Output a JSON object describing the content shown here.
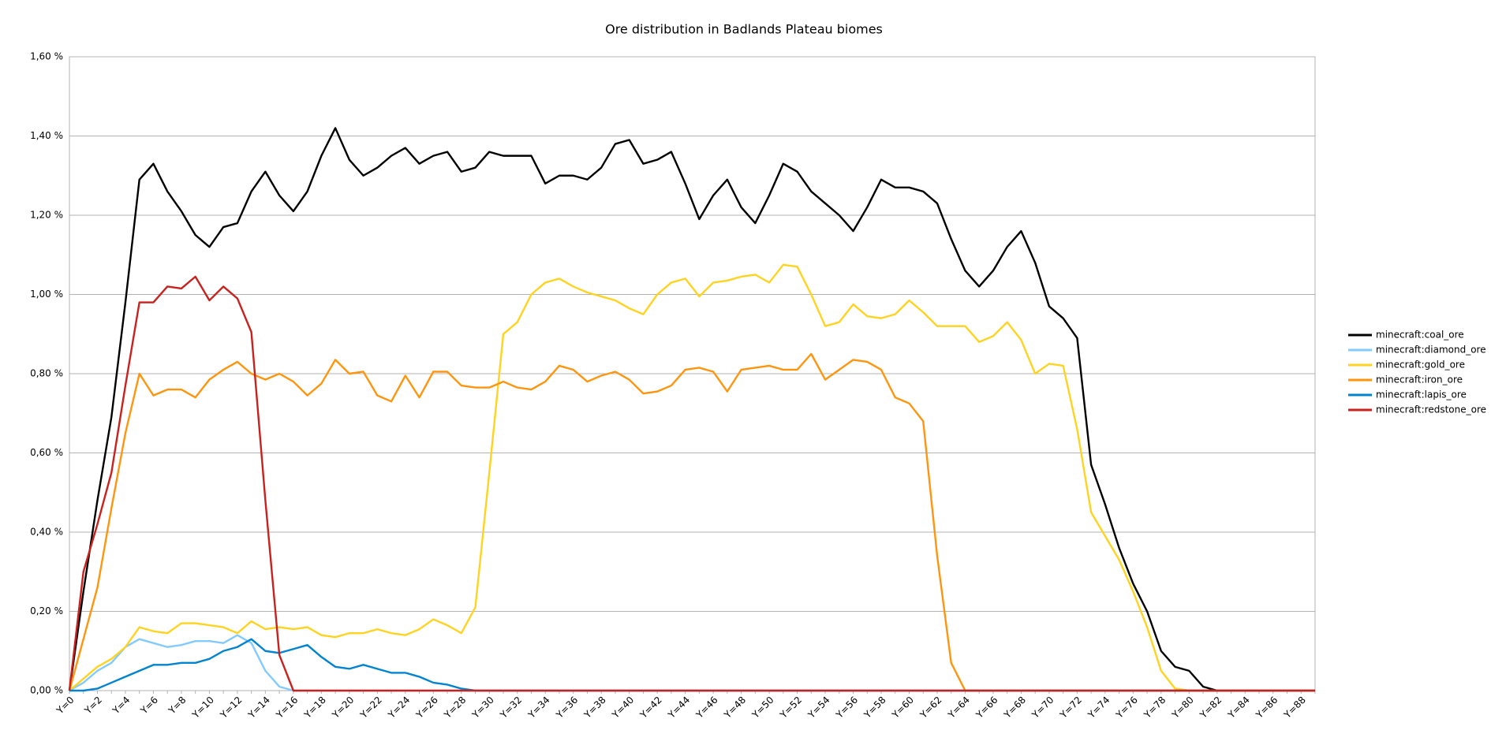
{
  "chart_data": {
    "type": "line",
    "title": "Ore distribution in Badlands Plateau biomes",
    "categories": [
      "Y=0",
      null,
      "Y=2",
      null,
      "Y=4",
      null,
      "Y=6",
      null,
      "Y=8",
      null,
      "Y=10",
      null,
      "Y=12",
      null,
      "Y=14",
      null,
      "Y=16",
      null,
      "Y=18",
      null,
      "Y=20",
      null,
      "Y=22",
      null,
      "Y=24",
      null,
      "Y=26",
      null,
      "Y=28",
      null,
      "Y=30",
      null,
      "Y=32",
      null,
      "Y=34",
      null,
      "Y=36",
      null,
      "Y=38",
      null,
      "Y=40",
      null,
      "Y=42",
      null,
      "Y=44",
      null,
      "Y=46",
      null,
      "Y=48",
      null,
      "Y=50",
      null,
      "Y=52",
      null,
      "Y=54",
      null,
      "Y=56",
      null,
      "Y=58",
      null,
      "Y=60",
      null,
      "Y=62",
      null,
      "Y=64",
      null,
      "Y=66",
      null,
      "Y=68",
      null,
      "Y=70",
      null,
      "Y=72",
      null,
      "Y=74",
      null,
      "Y=76",
      null,
      "Y=78",
      null,
      "Y=80",
      null,
      "Y=82",
      null,
      "Y=84",
      null,
      "Y=86",
      null,
      "Y=88",
      null
    ],
    "ylim": [
      0,
      1.6
    ],
    "yticks": [
      {
        "value": 0,
        "label": "0,00 %"
      },
      {
        "value": 0.2,
        "label": "0,20 %"
      },
      {
        "value": 0.4,
        "label": "0,40 %"
      },
      {
        "value": 0.6,
        "label": "0,60 %"
      },
      {
        "value": 0.8,
        "label": "0,80 %"
      },
      {
        "value": 1.0,
        "label": "1,00 %"
      },
      {
        "value": 1.2,
        "label": "1,20 %"
      },
      {
        "value": 1.4,
        "label": "1,40 %"
      },
      {
        "value": 1.6,
        "label": "1,60 %"
      }
    ],
    "grid": true,
    "legend": "right",
    "series": [
      {
        "name": "minecraft:coal_ore",
        "color": "#000000",
        "values": [
          0,
          0.25,
          0.48,
          0.69,
          0.98,
          1.29,
          1.33,
          1.26,
          1.21,
          1.15,
          1.12,
          1.17,
          1.18,
          1.26,
          1.31,
          1.25,
          1.21,
          1.26,
          1.35,
          1.42,
          1.34,
          1.3,
          1.32,
          1.35,
          1.37,
          1.33,
          1.35,
          1.36,
          1.31,
          1.32,
          1.36,
          1.35,
          1.35,
          1.35,
          1.28,
          1.3,
          1.3,
          1.29,
          1.32,
          1.38,
          1.39,
          1.33,
          1.34,
          1.36,
          1.28,
          1.19,
          1.25,
          1.29,
          1.22,
          1.18,
          1.25,
          1.33,
          1.31,
          1.26,
          1.23,
          1.2,
          1.16,
          1.22,
          1.29,
          1.27,
          1.27,
          1.26,
          1.23,
          1.14,
          1.06,
          1.02,
          1.06,
          1.12,
          1.16,
          1.08,
          0.97,
          0.94,
          0.89,
          0.57,
          0.47,
          0.36,
          0.27,
          0.2,
          0.1,
          0.06,
          0.05,
          0.01,
          0,
          0,
          0,
          0,
          0,
          0,
          0,
          0
        ]
      },
      {
        "name": "minecraft:diamond_ore",
        "color": "#83caff",
        "values": [
          0,
          0.02,
          0.05,
          0.07,
          0.11,
          0.13,
          0.12,
          0.11,
          0.115,
          0.125,
          0.125,
          0.12,
          0.14,
          0.12,
          0.05,
          0.01,
          0,
          0,
          0,
          0,
          0,
          0,
          0,
          0,
          0,
          0,
          0,
          0,
          0,
          0,
          0,
          0,
          0,
          0,
          0,
          0,
          0,
          0,
          0,
          0,
          0,
          0,
          0,
          0,
          0,
          0,
          0,
          0,
          0,
          0,
          0,
          0,
          0,
          0,
          0,
          0,
          0,
          0,
          0,
          0,
          0,
          0,
          0,
          0,
          0,
          0,
          0,
          0,
          0,
          0,
          0,
          0,
          0,
          0,
          0,
          0,
          0,
          0,
          0,
          0,
          0,
          0,
          0,
          0,
          0,
          0,
          0,
          0,
          0,
          0
        ]
      },
      {
        "name": "minecraft:gold_ore",
        "color": "#ffd320",
        "values": [
          0,
          0.03,
          0.06,
          0.08,
          0.11,
          0.16,
          0.15,
          0.145,
          0.17,
          0.17,
          0.165,
          0.16,
          0.145,
          0.175,
          0.155,
          0.16,
          0.155,
          0.16,
          0.14,
          0.135,
          0.145,
          0.145,
          0.155,
          0.145,
          0.14,
          0.155,
          0.18,
          0.165,
          0.145,
          0.21,
          0.55,
          0.9,
          0.93,
          1.0,
          1.03,
          1.04,
          1.02,
          1.005,
          0.995,
          0.985,
          0.965,
          0.95,
          1.0,
          1.03,
          1.04,
          0.995,
          1.03,
          1.035,
          1.045,
          1.05,
          1.03,
          1.075,
          1.07,
          1.0,
          0.92,
          0.93,
          0.975,
          0.945,
          0.94,
          0.95,
          0.985,
          0.955,
          0.92,
          0.92,
          0.92,
          0.88,
          0.895,
          0.93,
          0.885,
          0.8,
          0.825,
          0.82,
          0.66,
          0.45,
          0.39,
          0.33,
          0.25,
          0.16,
          0.05,
          0.005,
          0,
          0,
          0,
          0,
          0,
          0,
          0,
          0,
          0,
          0
        ]
      },
      {
        "name": "minecraft:iron_ore",
        "color": "#ff950e",
        "values": [
          0,
          0.13,
          0.26,
          0.46,
          0.65,
          0.8,
          0.745,
          0.76,
          0.76,
          0.74,
          0.785,
          0.81,
          0.83,
          0.8,
          0.785,
          0.8,
          0.78,
          0.745,
          0.775,
          0.835,
          0.8,
          0.805,
          0.745,
          0.73,
          0.795,
          0.74,
          0.805,
          0.805,
          0.77,
          0.765,
          0.765,
          0.78,
          0.765,
          0.76,
          0.78,
          0.82,
          0.81,
          0.78,
          0.795,
          0.805,
          0.785,
          0.75,
          0.755,
          0.77,
          0.81,
          0.815,
          0.805,
          0.755,
          0.81,
          0.815,
          0.82,
          0.81,
          0.81,
          0.85,
          0.785,
          0.81,
          0.835,
          0.83,
          0.81,
          0.74,
          0.725,
          0.68,
          0.34,
          0.07,
          0,
          0,
          0,
          0,
          0,
          0,
          0,
          0,
          0,
          0,
          0,
          0,
          0,
          0,
          0,
          0,
          0,
          0,
          0,
          0,
          0,
          0,
          0,
          0,
          0,
          0
        ]
      },
      {
        "name": "minecraft:lapis_ore",
        "color": "#0084d1",
        "values": [
          0,
          0,
          0.005,
          0.02,
          0.035,
          0.05,
          0.065,
          0.065,
          0.07,
          0.07,
          0.08,
          0.1,
          0.11,
          0.13,
          0.1,
          0.095,
          0.105,
          0.115,
          0.085,
          0.06,
          0.055,
          0.065,
          0.055,
          0.045,
          0.045,
          0.035,
          0.02,
          0.015,
          0.005,
          0,
          0,
          0,
          0,
          0,
          0,
          0,
          0,
          0,
          0,
          0,
          0,
          0,
          0,
          0,
          0,
          0,
          0,
          0,
          0,
          0,
          0,
          0,
          0,
          0,
          0,
          0,
          0,
          0,
          0,
          0,
          0,
          0,
          0,
          0,
          0,
          0,
          0,
          0,
          0,
          0,
          0,
          0,
          0,
          0,
          0,
          0,
          0,
          0,
          0,
          0,
          0,
          0,
          0,
          0,
          0,
          0,
          0,
          0,
          0,
          0
        ]
      },
      {
        "name": "minecraft:redstone_ore",
        "color": "#c9211e",
        "values": [
          0,
          0.3,
          0.42,
          0.55,
          0.77,
          0.98,
          0.98,
          1.02,
          1.015,
          1.045,
          0.985,
          1.02,
          0.99,
          0.905,
          0.48,
          0.09,
          0,
          0,
          0,
          0,
          0,
          0,
          0,
          0,
          0,
          0,
          0,
          0,
          0,
          0,
          0,
          0,
          0,
          0,
          0,
          0,
          0,
          0,
          0,
          0,
          0,
          0,
          0,
          0,
          0,
          0,
          0,
          0,
          0,
          0,
          0,
          0,
          0,
          0,
          0,
          0,
          0,
          0,
          0,
          0,
          0,
          0,
          0,
          0,
          0,
          0,
          0,
          0,
          0,
          0,
          0,
          0,
          0,
          0,
          0,
          0,
          0,
          0,
          0,
          0,
          0,
          0,
          0,
          0,
          0,
          0,
          0,
          0,
          0,
          0
        ]
      }
    ]
  }
}
